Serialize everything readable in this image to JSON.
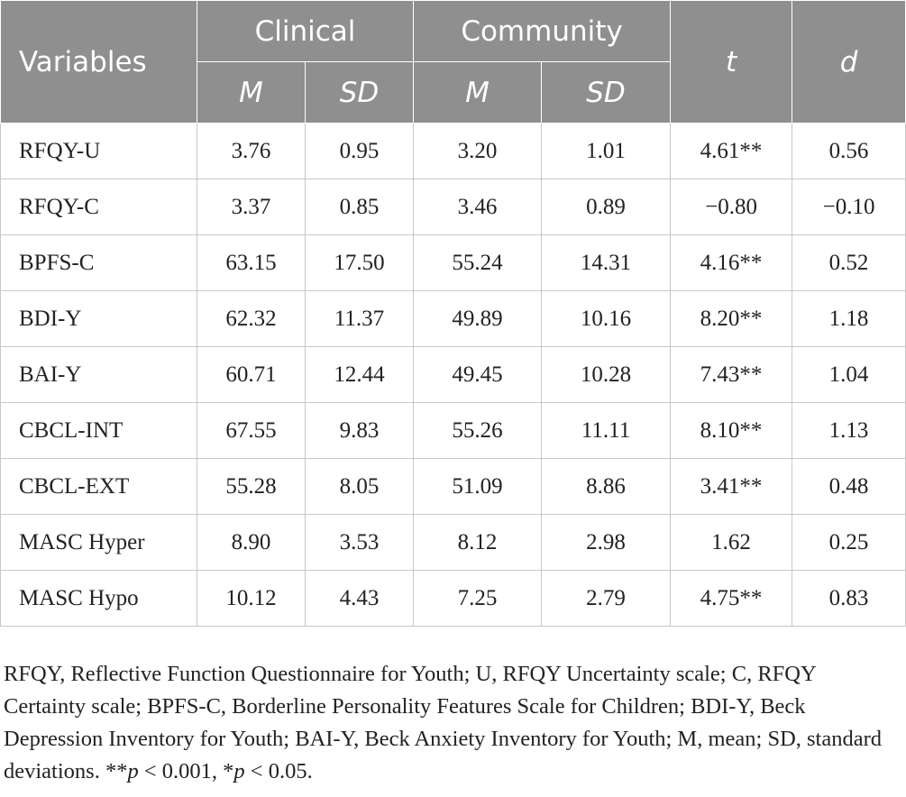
{
  "table": {
    "header": {
      "variables": "Variables",
      "clinical": "Clinical",
      "community": "Community",
      "t": "t",
      "d": "d",
      "m": "M",
      "sd": "SD"
    },
    "rows": [
      {
        "variable": "RFQY-U",
        "clin_m": "3.76",
        "clin_sd": "0.95",
        "comm_m": "3.20",
        "comm_sd": "1.01",
        "t": "4.61**",
        "d": "0.56"
      },
      {
        "variable": "RFQY-C",
        "clin_m": "3.37",
        "clin_sd": "0.85",
        "comm_m": "3.46",
        "comm_sd": "0.89",
        "t": "−0.80",
        "d": "−0.10"
      },
      {
        "variable": "BPFS-C",
        "clin_m": "63.15",
        "clin_sd": "17.50",
        "comm_m": "55.24",
        "comm_sd": "14.31",
        "t": "4.16**",
        "d": "0.52"
      },
      {
        "variable": "BDI-Y",
        "clin_m": "62.32",
        "clin_sd": "11.37",
        "comm_m": "49.89",
        "comm_sd": "10.16",
        "t": "8.20**",
        "d": "1.18"
      },
      {
        "variable": "BAI-Y",
        "clin_m": "60.71",
        "clin_sd": "12.44",
        "comm_m": "49.45",
        "comm_sd": "10.28",
        "t": "7.43**",
        "d": "1.04"
      },
      {
        "variable": "CBCL-INT",
        "clin_m": "67.55",
        "clin_sd": "9.83",
        "comm_m": "55.26",
        "comm_sd": "11.11",
        "t": "8.10**",
        "d": "1.13"
      },
      {
        "variable": "CBCL-EXT",
        "clin_m": "55.28",
        "clin_sd": "8.05",
        "comm_m": "51.09",
        "comm_sd": "8.86",
        "t": "3.41**",
        "d": "0.48"
      },
      {
        "variable": "MASC Hyper",
        "clin_m": "8.90",
        "clin_sd": "3.53",
        "comm_m": "8.12",
        "comm_sd": "2.98",
        "t": "1.62",
        "d": "0.25"
      },
      {
        "variable": "MASC Hypo",
        "clin_m": "10.12",
        "clin_sd": "4.43",
        "comm_m": "7.25",
        "comm_sd": "2.79",
        "t": "4.75**",
        "d": "0.83"
      }
    ]
  },
  "note": {
    "text_main": "RFQY, Reflective Function Questionnaire for Youth; U, RFQY Uncertainty scale; C, RFQY Certainty scale; BPFS-C, Borderline Personality Features Scale for Children; BDI-Y, Beck Depression Inventory for Youth; BAI-Y, Beck Anxiety Inventory for Youth; M, mean; SD, standard deviations. **",
    "p1": "p",
    "mid": " < 0.001, *",
    "p2": "p",
    "end": " < 0.05."
  }
}
